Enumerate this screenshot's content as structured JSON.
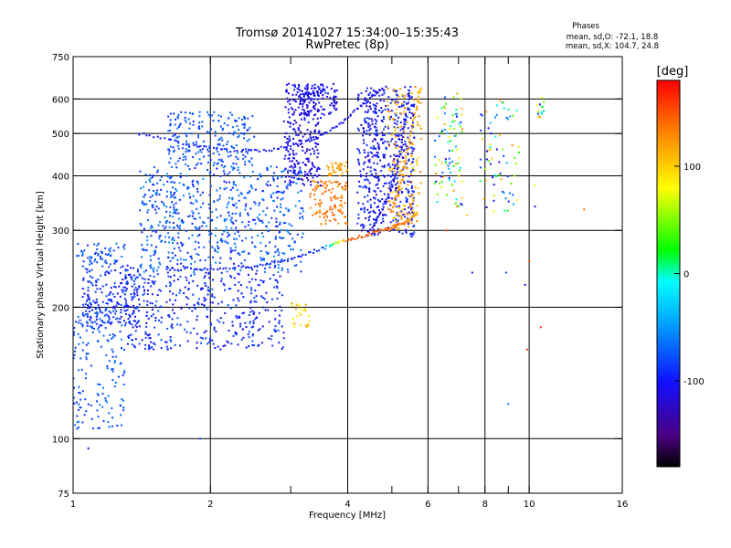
{
  "chart_data": {
    "type": "scatter",
    "title": "Tromsø 20141027 15:34:00–15:35:43",
    "subtitle": "RwPretec (8p)",
    "xlabel": "Frequency [MHz]",
    "ylabel": "Stationary phase Virtual Height [km]",
    "x_scale": "log",
    "y_scale": "log",
    "xlim": [
      1,
      16
    ],
    "ylim": [
      75,
      750
    ],
    "x_ticks": [
      1,
      2,
      4,
      6,
      8,
      10,
      16
    ],
    "x_tick_labels": [
      "1",
      "2",
      "4",
      "6",
      "8",
      "10",
      "16"
    ],
    "x_minor_ticks": [
      3,
      5,
      7,
      9
    ],
    "y_ticks": [
      75,
      100,
      200,
      300,
      400,
      500,
      600,
      750
    ],
    "y_tick_labels": [
      "75",
      "100",
      "200",
      "300",
      "400",
      "500",
      "600",
      "750"
    ],
    "grid": true,
    "phases_box": {
      "heading": "Phases",
      "line_o": "mean, sd,O: -72.1, 18.8",
      "line_x": "mean, sd,X: 104.7, 24.8"
    },
    "colorbar": {
      "label": "[deg]",
      "range": [
        -180,
        180
      ],
      "ticks": [
        100,
        0,
        -100
      ],
      "tick_labels": [
        "100",
        "0",
        "-100"
      ],
      "colormap": "rainbow-black-to-red"
    },
    "clusters": [
      {
        "x": [
          1.05,
          1.4
        ],
        "y": [
          180,
          250
        ],
        "phase": [
          -110,
          -70
        ],
        "count": 220
      },
      {
        "x": [
          1.0,
          1.3
        ],
        "y": [
          105,
          200
        ],
        "phase": [
          -90,
          -60
        ],
        "count": 160
      },
      {
        "x": [
          1.02,
          1.3
        ],
        "y": [
          250,
          280
        ],
        "phase": [
          -90,
          -60
        ],
        "count": 60
      },
      {
        "x": [
          1.3,
          2.9
        ],
        "y": [
          160,
          240
        ],
        "phase": [
          -115,
          -70
        ],
        "count": 420
      },
      {
        "x": [
          1.4,
          3.2
        ],
        "y": [
          240,
          420
        ],
        "phase": [
          -100,
          -50
        ],
        "count": 650
      },
      {
        "x": [
          1.6,
          2.5
        ],
        "y": [
          420,
          560
        ],
        "phase": [
          -90,
          -60
        ],
        "count": 220
      },
      {
        "x": [
          2.9,
          3.5
        ],
        "y": [
          380,
          650
        ],
        "phase": [
          -125,
          -95
        ],
        "count": 260
      },
      {
        "x": [
          3.1,
          3.8
        ],
        "y": [
          550,
          650
        ],
        "phase": [
          -120,
          -90
        ],
        "count": 110
      },
      {
        "x": [
          3.3,
          4.0
        ],
        "y": [
          310,
          390
        ],
        "phase": [
          120,
          150
        ],
        "count": 110
      },
      {
        "x": [
          3.6,
          4.0
        ],
        "y": [
          400,
          430
        ],
        "phase": [
          110,
          130
        ],
        "count": 35
      },
      {
        "x": [
          3.0,
          3.3
        ],
        "y": [
          180,
          205
        ],
        "phase": [
          70,
          120
        ],
        "count": 25
      },
      {
        "x": [
          4.2,
          5.6
        ],
        "y": [
          290,
          640
        ],
        "phase": [
          -120,
          -80
        ],
        "count": 550
      },
      {
        "x": [
          4.9,
          5.8
        ],
        "y": [
          300,
          640
        ],
        "phase": [
          90,
          140
        ],
        "count": 160
      },
      {
        "x": [
          6.2,
          7.2
        ],
        "y": [
          340,
          620
        ],
        "phase": [
          -110,
          140
        ],
        "count": 90
      },
      {
        "x": [
          7.8,
          9.5
        ],
        "y": [
          330,
          600
        ],
        "phase": [
          -120,
          130
        ],
        "count": 70
      },
      {
        "x": [
          10.3,
          10.8
        ],
        "y": [
          540,
          620
        ],
        "phase": [
          -110,
          140
        ],
        "count": 15
      }
    ],
    "curves": [
      {
        "name": "",
        "x": [
          1.6,
          2.0,
          2.5,
          3.0,
          3.5,
          4.0,
          4.5,
          5.0,
          5.4,
          5.7
        ],
        "y": [
          245,
          245,
          248,
          258,
          272,
          285,
          295,
          305,
          315,
          330
        ],
        "phase": [
          -100,
          -100,
          -95,
          -95,
          -90,
          150,
          150,
          140,
          130,
          110
        ]
      },
      {
        "name": "",
        "x": [
          1.4,
          1.8,
          2.3,
          2.8,
          3.3,
          3.8,
          4.3,
          4.8
        ],
        "y": [
          500,
          470,
          455,
          460,
          480,
          520,
          580,
          640
        ],
        "phase": [
          -100,
          -95,
          -95,
          -100,
          -100,
          -105,
          -110,
          -110
        ]
      },
      {
        "name": "",
        "x": [
          4.5,
          4.8,
          5.1,
          5.3,
          5.5
        ],
        "y": [
          300,
          340,
          400,
          500,
          640
        ],
        "phase": [
          -110,
          -105,
          -100,
          -100,
          -95
        ]
      },
      {
        "name": "",
        "x": [
          5.0,
          5.2,
          5.4,
          5.6,
          5.8
        ],
        "y": [
          330,
          380,
          450,
          540,
          640
        ],
        "phase": [
          130,
          125,
          120,
          115,
          110
        ]
      }
    ],
    "points": [
      {
        "x": 1.08,
        "y": 95,
        "phase": -100
      },
      {
        "x": 1.9,
        "y": 100,
        "phase": -80
      },
      {
        "x": 7.5,
        "y": 240,
        "phase": -110
      },
      {
        "x": 8.9,
        "y": 240,
        "phase": -80
      },
      {
        "x": 9.0,
        "y": 120,
        "phase": -60
      },
      {
        "x": 9.8,
        "y": 225,
        "phase": -100
      },
      {
        "x": 10.0,
        "y": 255,
        "phase": 150
      },
      {
        "x": 10.6,
        "y": 180,
        "phase": 160
      },
      {
        "x": 9.9,
        "y": 160,
        "phase": 160
      },
      {
        "x": 10.3,
        "y": 380,
        "phase": 80
      },
      {
        "x": 10.3,
        "y": 340,
        "phase": -100
      },
      {
        "x": 13.2,
        "y": 335,
        "phase": 140
      },
      {
        "x": 7.3,
        "y": 325,
        "phase": 110
      },
      {
        "x": 6.6,
        "y": 300,
        "phase": 150
      },
      {
        "x": 8.5,
        "y": 460,
        "phase": -120
      },
      {
        "x": 8.6,
        "y": 430,
        "phase": -110
      }
    ]
  }
}
